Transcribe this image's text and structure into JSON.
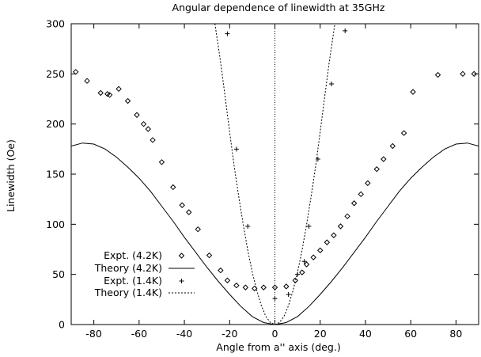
{
  "chart_data": {
    "type": "scatter",
    "title": "Angular dependence of linewidth at 35GHz",
    "xlabel": "Angle from a'' axis (deg.)",
    "ylabel": "Linewidth (Oe)",
    "xlim": [
      -90,
      90
    ],
    "ylim": [
      0,
      300
    ],
    "xticks": [
      -80,
      -60,
      -40,
      -20,
      0,
      20,
      40,
      60,
      80
    ],
    "yticks": [
      0,
      50,
      100,
      150,
      200,
      250,
      300
    ],
    "grid": false,
    "legend_position": "lower-left",
    "series": [
      {
        "name": "Expt. (4.2K)",
        "kind": "points",
        "marker": "diamond",
        "x": [
          -88,
          -83,
          -77,
          -74,
          -73,
          -69,
          -65,
          -61,
          -58,
          -56,
          -54,
          -50,
          -45,
          -41,
          -38,
          -34,
          -29,
          -24,
          -21,
          -17,
          -13,
          -9,
          -5,
          0,
          5,
          9,
          12,
          14,
          17,
          20,
          23,
          26,
          29,
          32,
          35,
          38,
          41,
          45,
          48,
          52,
          57,
          61,
          72,
          83,
          88
        ],
        "y": [
          252,
          243,
          231,
          230,
          229,
          235,
          223,
          209,
          200,
          195,
          184,
          162,
          137,
          119,
          112,
          95,
          69,
          54,
          44,
          39,
          37,
          36,
          37,
          37,
          38,
          44,
          52,
          60,
          67,
          74,
          82,
          89,
          98,
          108,
          121,
          130,
          141,
          155,
          165,
          178,
          191,
          232,
          249,
          250,
          250
        ]
      },
      {
        "name": "Theory (4.2K)",
        "kind": "curve",
        "dash": "solid",
        "x": [
          -90,
          -85,
          -80,
          -75,
          -70,
          -65,
          -60,
          -55,
          -50,
          -45,
          -40,
          -35,
          -30,
          -25,
          -20,
          -15,
          -10,
          -5,
          0,
          5,
          10,
          15,
          20,
          25,
          30,
          35,
          40,
          45,
          50,
          55,
          60,
          65,
          70,
          75,
          80,
          85,
          90
        ],
        "y": [
          178,
          181,
          180,
          175,
          167,
          157,
          146,
          133,
          118,
          103,
          87,
          72,
          57,
          43,
          30,
          18,
          8,
          2,
          0,
          2,
          8,
          18,
          30,
          43,
          57,
          72,
          87,
          103,
          118,
          133,
          146,
          157,
          167,
          175,
          180,
          181,
          178
        ]
      },
      {
        "name": "Expt. (1.4K)",
        "kind": "points",
        "marker": "plus",
        "x": [
          -21,
          -17,
          -12,
          0,
          6,
          10,
          13,
          15,
          19,
          25,
          31
        ],
        "y": [
          290,
          175,
          98,
          26,
          30,
          50,
          63,
          98,
          165,
          240,
          293
        ]
      },
      {
        "name": "Theory (1.4K)",
        "kind": "curve",
        "dash": "dotted",
        "x": [
          -26.5,
          -24,
          -22,
          -20,
          -18,
          -16,
          -14,
          -12,
          -10,
          -8,
          -6,
          -4,
          -2,
          0,
          2,
          4,
          6,
          8,
          10,
          12,
          14,
          16,
          18,
          20,
          22,
          24,
          26.5
        ],
        "y": [
          300,
          262,
          227,
          192,
          158,
          128,
          100,
          74,
          52,
          34,
          19,
          8,
          2,
          0,
          2,
          8,
          19,
          34,
          52,
          74,
          100,
          128,
          158,
          192,
          227,
          262,
          300
        ]
      }
    ],
    "reference_line": {
      "x": 0,
      "dash": "dotted"
    }
  }
}
